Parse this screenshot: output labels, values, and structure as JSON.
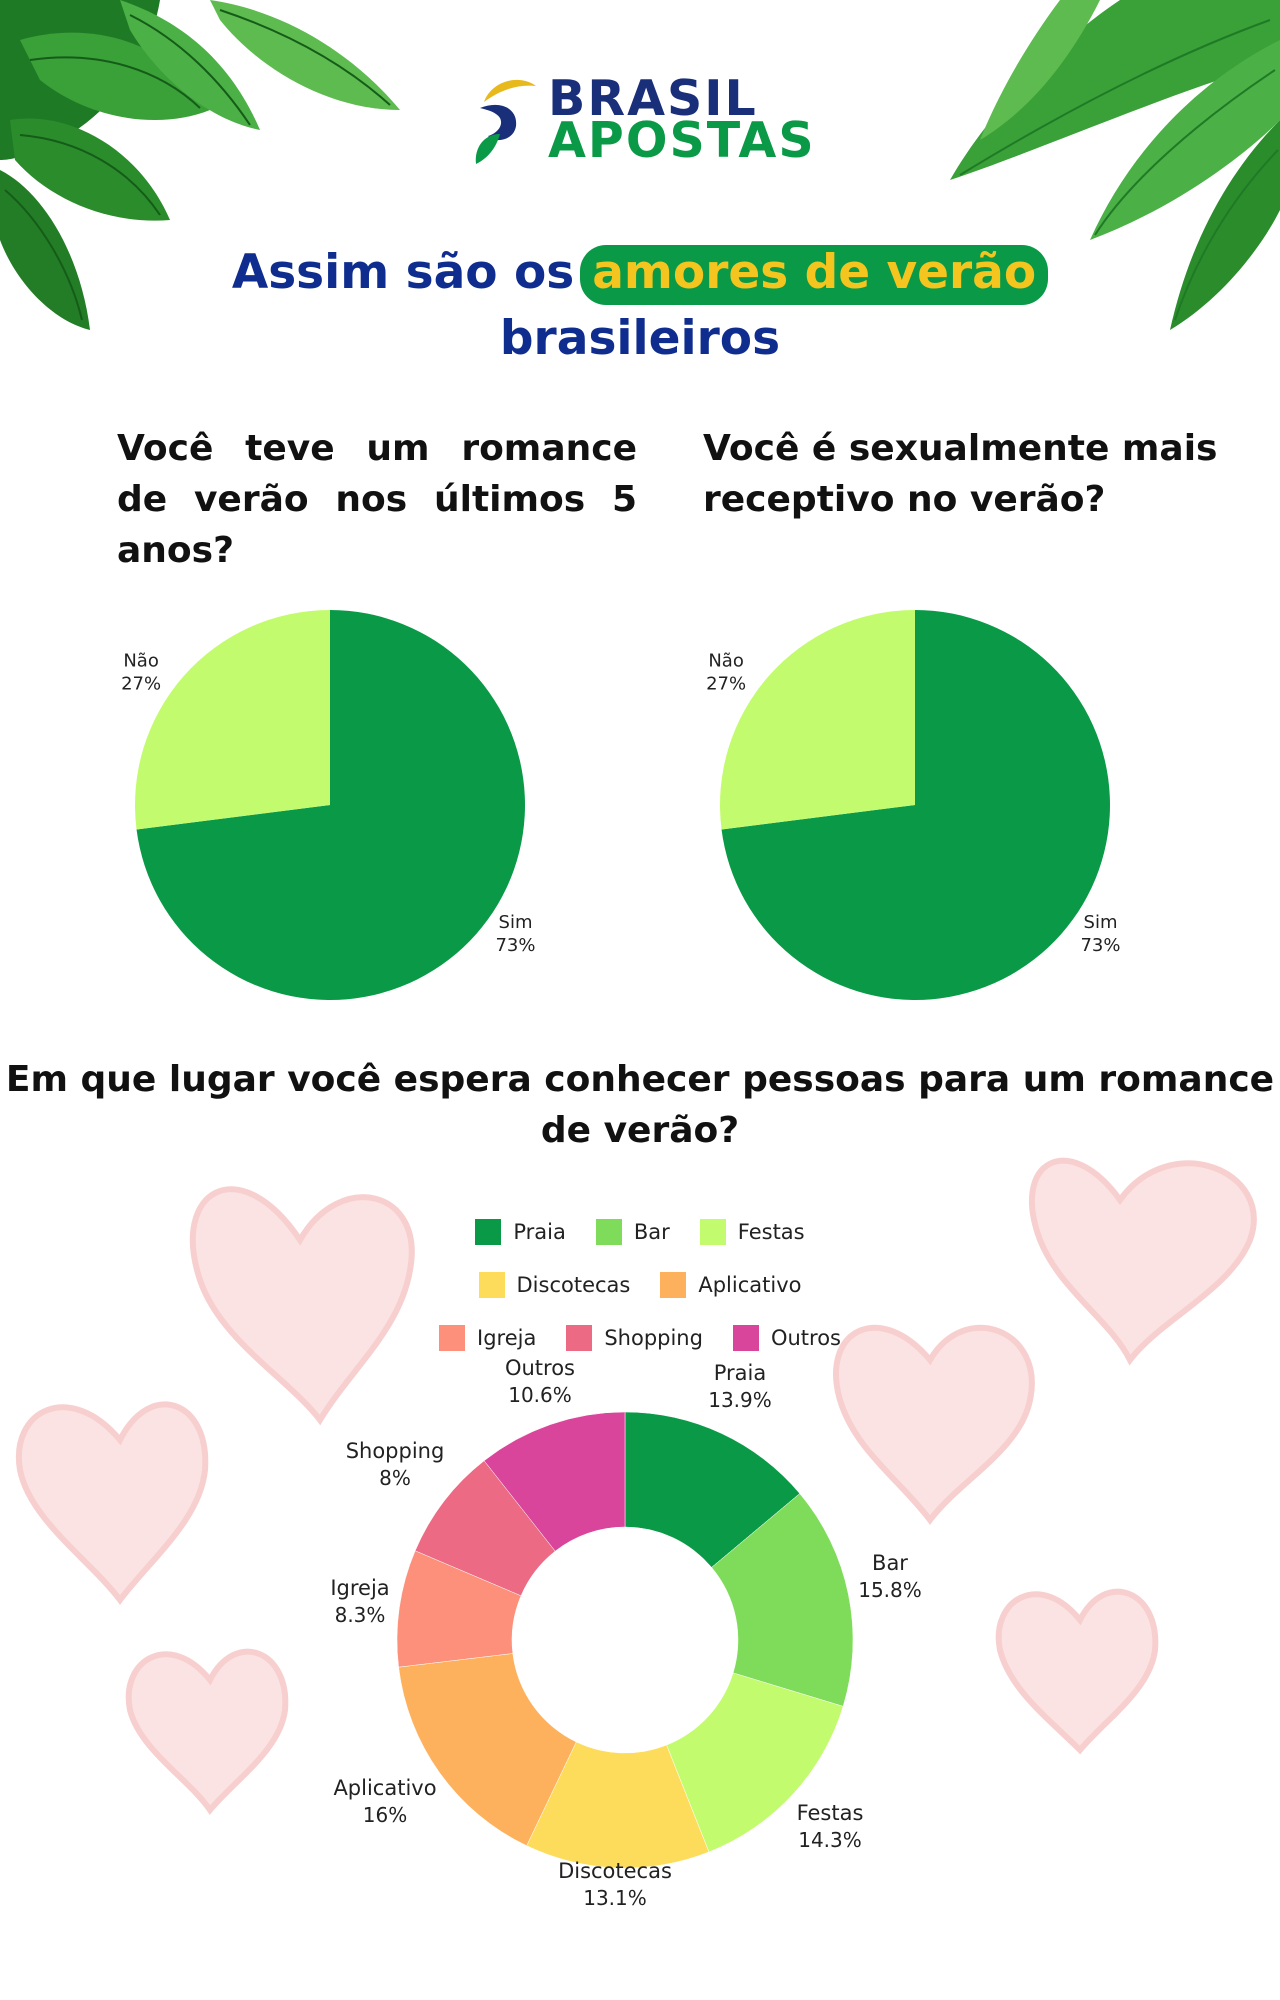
{
  "brand": {
    "line1": "BRASIL",
    "line2": "APOSTAS"
  },
  "headline": {
    "part1": "Assim são os",
    "highlight": "amores de verão",
    "part2": "brasileiros"
  },
  "colors": {
    "navy": "#0e2d8e",
    "brand_green": "#0a9a47",
    "brand_yellow": "#f4c51f",
    "pie_sim": "#0a9a47",
    "pie_nao": "#c3fb6e"
  },
  "questions": {
    "q1": "Você teve um romance de verão nos últimos 5 anos?",
    "q2": "Você é sexualmente mais receptivo no verão?",
    "q3": "Em que lugar você espera conhecer pessoas para um romance de verão?"
  },
  "chart_data": [
    {
      "type": "pie",
      "title": "Você teve um romance de verão nos últimos 5 anos?",
      "categories": [
        "Sim",
        "Não"
      ],
      "values": [
        73,
        27
      ],
      "labels": [
        "73%",
        "27%"
      ],
      "colors": [
        "#0a9a47",
        "#c3fb6e"
      ]
    },
    {
      "type": "pie",
      "title": "Você é sexualmente mais receptivo no verão?",
      "categories": [
        "Sim",
        "Não"
      ],
      "values": [
        73,
        27
      ],
      "labels": [
        "73%",
        "27%"
      ],
      "colors": [
        "#0a9a47",
        "#c3fb6e"
      ]
    },
    {
      "type": "pie",
      "subtype": "donut",
      "title": "Em que lugar você espera conhecer pessoas para um romance de verão?",
      "categories": [
        "Praia",
        "Bar",
        "Festas",
        "Discotecas",
        "Aplicativo",
        "Igreja",
        "Shopping",
        "Outros"
      ],
      "values": [
        13.9,
        15.8,
        14.3,
        13.1,
        16,
        8.3,
        8,
        10.6
      ],
      "labels": [
        "13.9%",
        "15.8%",
        "14.3%",
        "13.1%",
        "16%",
        "8.3%",
        "8%",
        "10.6%"
      ],
      "colors": [
        "#0a9a47",
        "#7fdc5a",
        "#c3fb6e",
        "#fddc5c",
        "#fdb15d",
        "#fd907a",
        "#ec6a84",
        "#d8459b"
      ],
      "legend": "top"
    }
  ]
}
